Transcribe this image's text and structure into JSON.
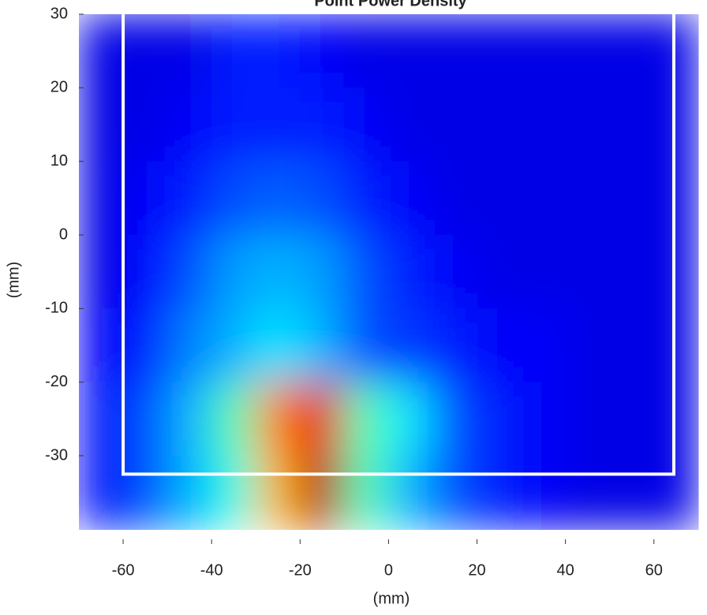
{
  "chart_data": {
    "type": "heatmap",
    "title": "Point Power Density",
    "x_label": "(mm)",
    "y_label": "(mm)",
    "x": [
      -65,
      -55,
      -45,
      -35,
      -25,
      -15,
      -5,
      5,
      15,
      25,
      35,
      45,
      55,
      65
    ],
    "y": [
      25,
      15,
      5,
      -5,
      -15,
      -25,
      -35
    ],
    "z": [
      [
        0.1,
        0.1,
        0.1,
        0.15,
        0.15,
        0.12,
        0.1,
        0.1,
        0.1,
        0.1,
        0.1,
        0.1,
        0.1,
        0.1
      ],
      [
        0.1,
        0.1,
        0.12,
        0.15,
        0.15,
        0.15,
        0.12,
        0.1,
        0.1,
        0.1,
        0.1,
        0.1,
        0.1,
        0.1
      ],
      [
        0.1,
        0.12,
        0.15,
        0.2,
        0.22,
        0.2,
        0.15,
        0.12,
        0.1,
        0.1,
        0.1,
        0.1,
        0.1,
        0.1
      ],
      [
        0.1,
        0.13,
        0.2,
        0.28,
        0.3,
        0.28,
        0.2,
        0.15,
        0.12,
        0.1,
        0.1,
        0.1,
        0.1,
        0.1
      ],
      [
        0.12,
        0.15,
        0.25,
        0.3,
        0.35,
        0.3,
        0.2,
        0.18,
        0.15,
        0.12,
        0.12,
        0.1,
        0.1,
        0.1
      ],
      [
        0.12,
        0.2,
        0.3,
        0.45,
        0.75,
        0.9,
        0.45,
        0.35,
        0.2,
        0.15,
        0.12,
        0.1,
        0.1,
        0.1
      ],
      [
        0.12,
        0.2,
        0.3,
        0.4,
        0.7,
        0.95,
        0.45,
        0.3,
        0.2,
        0.15,
        0.12,
        0.1,
        0.1,
        0.1
      ]
    ],
    "colormap": "jet",
    "xlim": [
      -70,
      72
    ],
    "ylim": [
      -42,
      30
    ],
    "xticks": [
      -60,
      -40,
      -20,
      0,
      20,
      40,
      60
    ],
    "yticks": [
      30,
      20,
      10,
      0,
      -10,
      -20,
      -30
    ],
    "box": {
      "x": [
        -60,
        64.5
      ],
      "y": [
        -32.5,
        30
      ],
      "color": "#ffffff"
    }
  }
}
